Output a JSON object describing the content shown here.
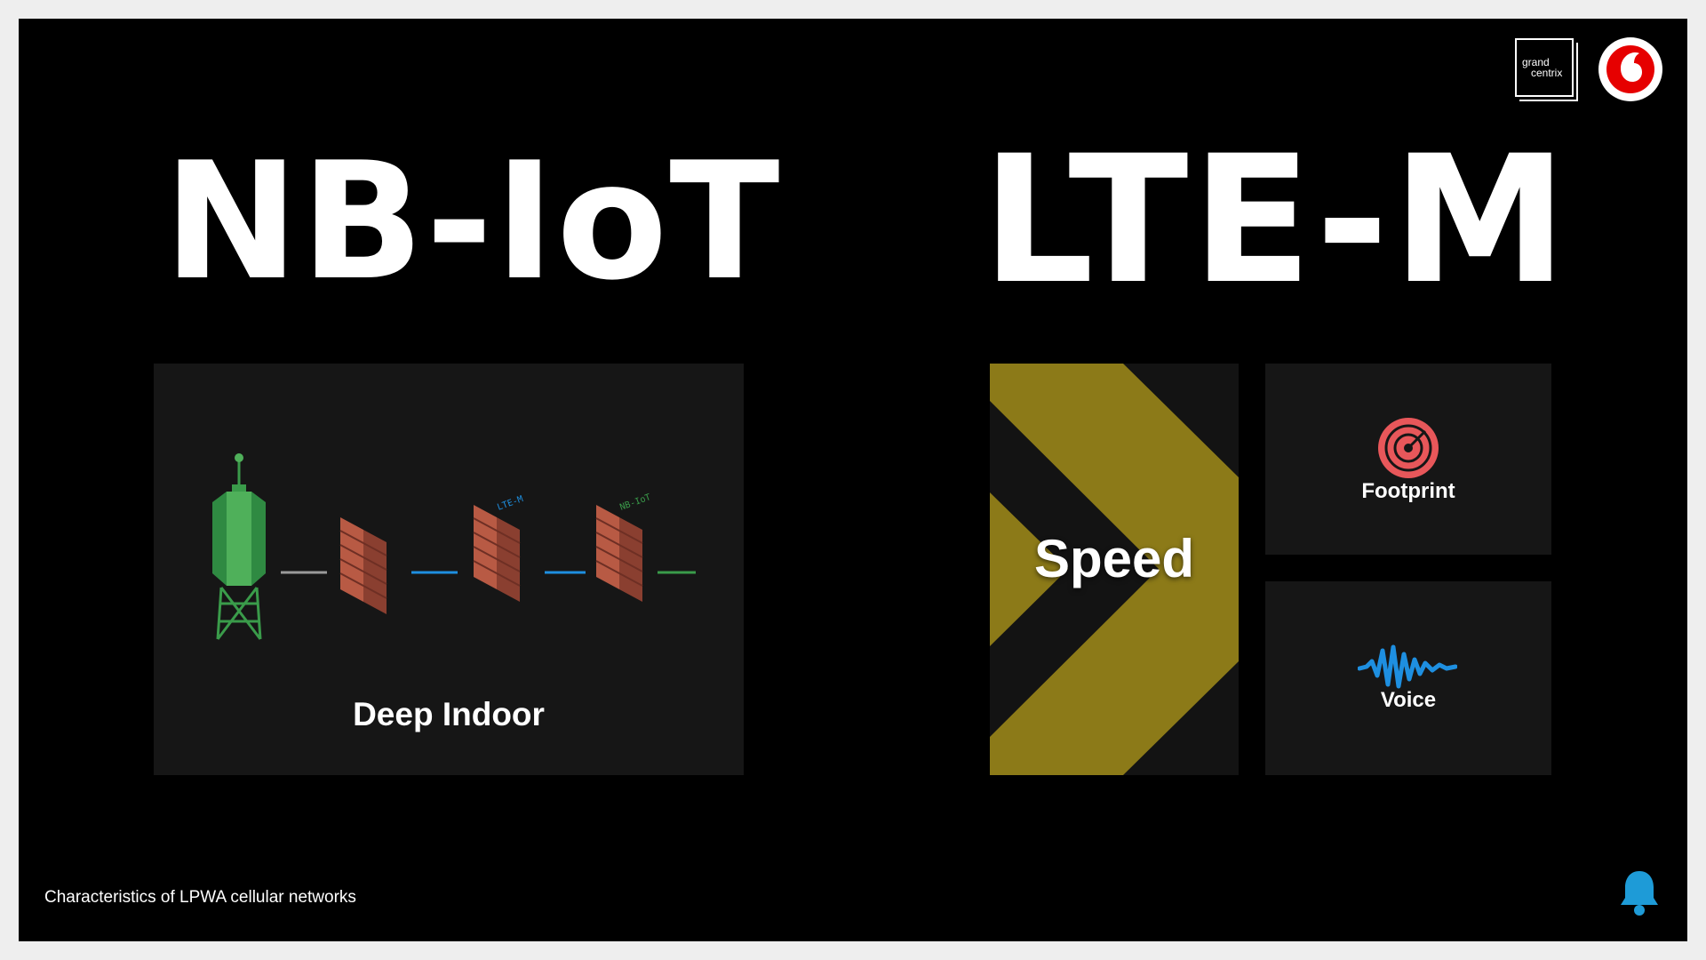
{
  "slide": {
    "left_title": "NB-IoT",
    "right_title": "LTE-M",
    "caption": "Characteristics of LPWA cellular networks"
  },
  "logos": {
    "grandcentrix_line1": "grand",
    "grandcentrix_line2": "centrix",
    "vodafone_icon": "vodafone-speechmark-icon"
  },
  "panels": {
    "deep_indoor": {
      "label": "Deep Indoor",
      "wall_tags": [
        "LTE-M",
        "NB-IoT"
      ],
      "icons": [
        "cell-tower-icon",
        "brick-wall-icon"
      ]
    },
    "speed": {
      "label": "Speed",
      "icon": "chevron-arrow-icon"
    },
    "footprint": {
      "label": "Footprint",
      "icon": "radar-target-icon"
    },
    "voice": {
      "label": "Voice",
      "icon": "sound-wave-icon"
    }
  },
  "colors": {
    "background": "#000000",
    "tower_green": "#3a9b4a",
    "brick_red": "#b85a44",
    "speed_olive": "#8c7a18",
    "footprint_red": "#e8575a",
    "voice_blue": "#1e8fe0",
    "vodafone_red": "#e60000",
    "bell_blue": "#1e9bd7"
  }
}
